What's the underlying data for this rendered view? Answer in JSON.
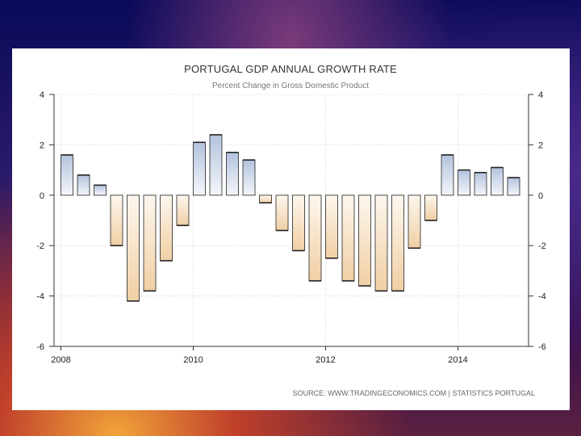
{
  "chart_data": {
    "type": "bar",
    "title": "PORTUGAL GDP ANNUAL GROWTH RATE",
    "subtitle": "Percent Change in Gross Domestic Product",
    "x_tick_labels": [
      "2008",
      "2010",
      "2012",
      "2014"
    ],
    "y_tick_labels": [
      "4",
      "2",
      "0",
      "-2",
      "-4",
      "-6"
    ],
    "ylim": [
      -6,
      4
    ],
    "grid": true,
    "values": [
      1.6,
      0.8,
      0.4,
      -2.0,
      -4.2,
      -3.8,
      -2.6,
      -1.2,
      2.1,
      2.4,
      1.7,
      1.4,
      -0.3,
      -1.4,
      -2.2,
      -3.4,
      -2.5,
      -3.4,
      -3.6,
      -3.8,
      -3.8,
      -2.1,
      -1.0,
      1.6,
      1.0,
      0.9,
      1.1,
      0.7
    ],
    "positive_color": "#b8c8e0",
    "negative_color": "#f2d2a8",
    "source": "SOURCE:  WWW.TRADINGECONOMICS.COM  |  STATISTICS  PORTUGAL"
  }
}
